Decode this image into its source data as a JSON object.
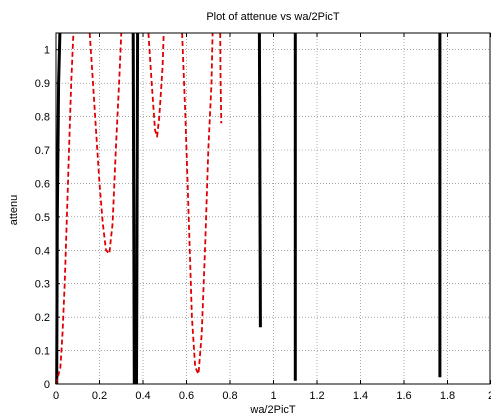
{
  "chart_data": {
    "type": "line",
    "title": "Plot of attenue vs wa/2PicT",
    "xlabel": "wa/2PicT",
    "ylabel": "attenu",
    "xlim": [
      0,
      2
    ],
    "ylim": [
      0,
      1.05
    ],
    "xticks": [
      "0",
      "0.2",
      "0.4",
      "0.6",
      "0.8",
      "1",
      "1.2",
      "1.4",
      "1.6",
      "1.8",
      "2"
    ],
    "yticks": [
      "0",
      "0.1",
      "0.2",
      "0.3",
      "0.4",
      "0.5",
      "0.6",
      "0.7",
      "0.8",
      "0.9",
      "1"
    ],
    "grid": true,
    "series": [
      {
        "color": "#000000",
        "style": "solid",
        "segments": [
          [
            [
              0.003,
              0.0
            ],
            [
              0.006,
              0.5
            ],
            [
              0.012,
              0.9
            ],
            [
              0.018,
              1.05
            ]
          ],
          [
            [
              0.355,
              1.05
            ],
            [
              0.36,
              0.0
            ]
          ],
          [
            [
              0.37,
              0.0
            ],
            [
              0.375,
              1.05
            ]
          ],
          [
            [
              0.935,
              1.05
            ],
            [
              0.94,
              0.17
            ]
          ],
          [
            [
              1.1,
              1.05
            ],
            [
              1.1,
              0.01
            ]
          ],
          [
            [
              1.765,
              1.05
            ],
            [
              1.765,
              0.02
            ]
          ]
        ]
      },
      {
        "color": "#e00000",
        "style": "dashed",
        "segments": [
          [
            [
              0.0,
              0.0
            ],
            [
              0.02,
              0.05
            ],
            [
              0.03,
              0.15
            ],
            [
              0.04,
              0.3
            ],
            [
              0.05,
              0.5
            ],
            [
              0.06,
              0.7
            ],
            [
              0.07,
              0.9
            ],
            [
              0.08,
              1.05
            ]
          ],
          [
            [
              0.155,
              1.05
            ],
            [
              0.17,
              0.9
            ],
            [
              0.185,
              0.75
            ],
            [
              0.2,
              0.6
            ],
            [
              0.215,
              0.48
            ],
            [
              0.23,
              0.4
            ],
            [
              0.245,
              0.39
            ],
            [
              0.26,
              0.48
            ],
            [
              0.275,
              0.7
            ],
            [
              0.29,
              0.9
            ],
            [
              0.3,
              1.05
            ]
          ],
          [
            [
              0.425,
              1.05
            ],
            [
              0.44,
              0.9
            ],
            [
              0.455,
              0.76
            ],
            [
              0.465,
              0.74
            ],
            [
              0.475,
              0.8
            ],
            [
              0.49,
              0.95
            ],
            [
              0.495,
              1.05
            ]
          ],
          [
            [
              0.58,
              1.05
            ],
            [
              0.595,
              0.8
            ],
            [
              0.61,
              0.5
            ],
            [
              0.625,
              0.2
            ],
            [
              0.64,
              0.05
            ],
            [
              0.655,
              0.03
            ],
            [
              0.67,
              0.15
            ],
            [
              0.685,
              0.4
            ],
            [
              0.7,
              0.7
            ],
            [
              0.715,
              0.9
            ],
            [
              0.72,
              1.05
            ]
          ],
          [
            [
              0.755,
              1.05
            ],
            [
              0.757,
              0.9
            ],
            [
              0.76,
              0.78
            ]
          ]
        ]
      }
    ]
  }
}
